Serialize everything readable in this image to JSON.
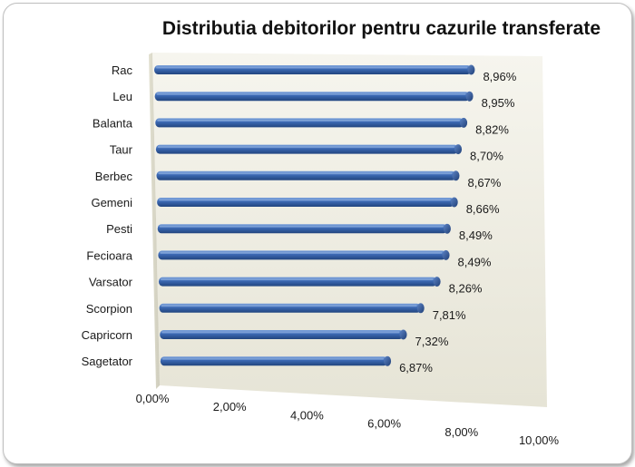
{
  "chart_data": {
    "type": "bar",
    "orientation": "horizontal",
    "title": "Distributia debitorilor pentru cazurile transferate",
    "categories": [
      "Rac",
      "Leu",
      "Balanta",
      "Taur",
      "Berbec",
      "Gemeni",
      "Pesti",
      "Fecioara",
      "Varsator",
      "Scorpion",
      "Capricorn",
      "Sagetator"
    ],
    "values": [
      8.96,
      8.95,
      8.82,
      8.7,
      8.67,
      8.66,
      8.49,
      8.49,
      8.26,
      7.81,
      7.32,
      6.87
    ],
    "value_labels": [
      "8,96%",
      "8,95%",
      "8,82%",
      "8,70%",
      "8,67%",
      "8,66%",
      "8,49%",
      "8,49%",
      "8,26%",
      "7,81%",
      "7,32%",
      "6,87%"
    ],
    "x_ticks": [
      "0,00%",
      "2,00%",
      "4,00%",
      "6,00%",
      "8,00%",
      "10,00%"
    ],
    "xlim": [
      0,
      10
    ],
    "grid": false,
    "legend": "none",
    "bar_color": "#3a67b5",
    "wall_color": "#f1f0e6"
  }
}
